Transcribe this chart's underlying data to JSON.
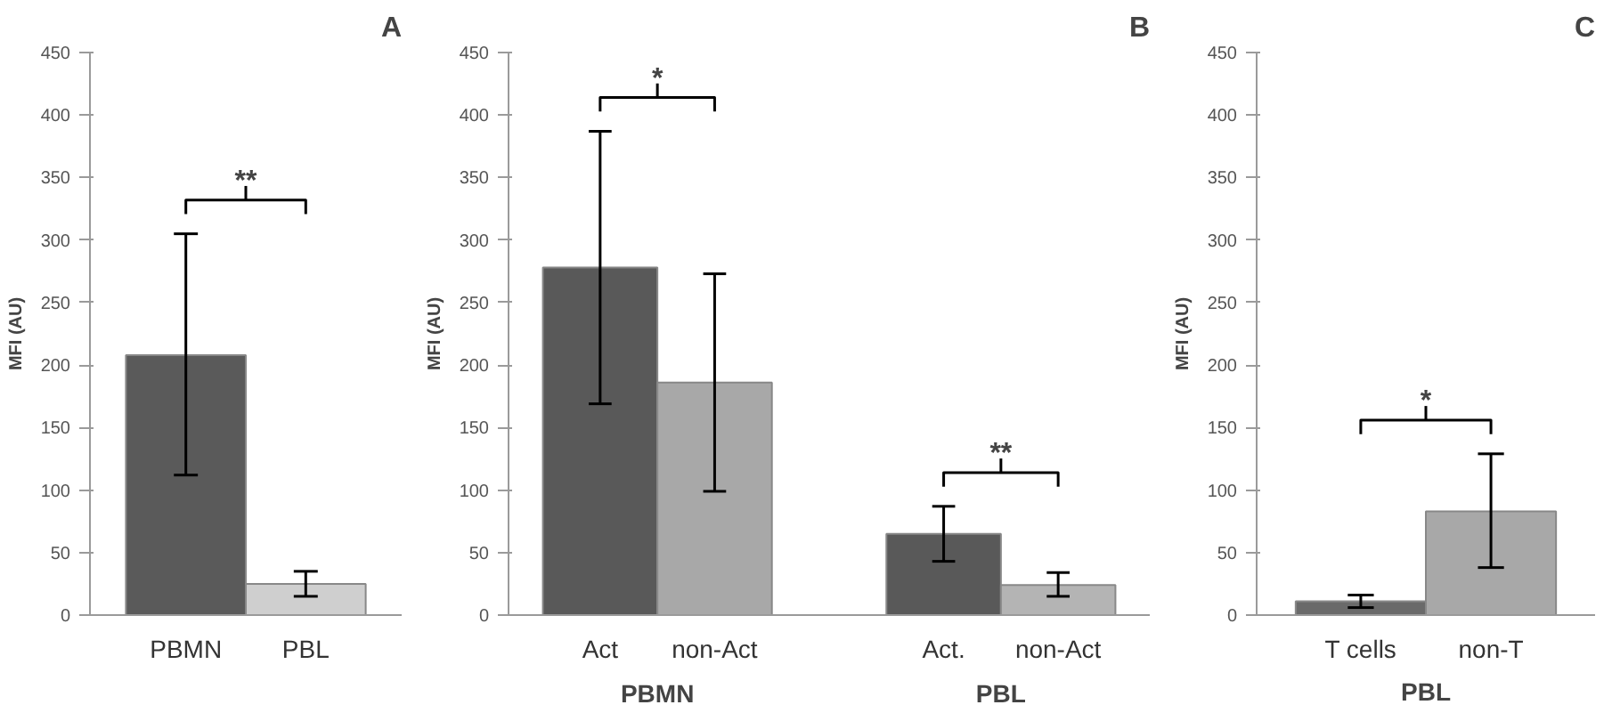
{
  "chart_data": [
    {
      "type": "bar",
      "title": "A",
      "ylabel": "MFI (AU)",
      "categories": [
        "PBMN",
        "PBL"
      ],
      "values": [
        208,
        25
      ],
      "colors": [
        "#5a5a5a",
        "#cfcfcf"
      ],
      "errors": [
        [
          112,
          305
        ],
        [
          15,
          35
        ]
      ],
      "ylim": [
        0,
        450
      ],
      "yticks": [
        0,
        50,
        100,
        150,
        200,
        250,
        300,
        350,
        400,
        450
      ],
      "grid": false,
      "annotations": [
        "**"
      ]
    },
    {
      "type": "bar",
      "title": "B",
      "ylabel": "MFI (AU)",
      "categories": [
        "Act",
        "non-Act",
        "Act.",
        "non-Act"
      ],
      "values": [
        278,
        186,
        65,
        24
      ],
      "colors": [
        "#595959",
        "#a8a8a8",
        "#595959",
        "#b4b4b4"
      ],
      "errors": [
        [
          169,
          387
        ],
        [
          99,
          273
        ],
        [
          43,
          87
        ],
        [
          15,
          34
        ]
      ],
      "ylim": [
        0,
        450
      ],
      "yticks": [
        0,
        50,
        100,
        150,
        200,
        250,
        300,
        350,
        400,
        450
      ],
      "grid": false,
      "annotations": [
        "*",
        "**",
        "PBMN",
        "PBL"
      ]
    },
    {
      "type": "bar",
      "title": "C",
      "ylabel": "MFI (AU)",
      "xlabel": "PBL",
      "categories": [
        "T cells",
        "non-T"
      ],
      "values": [
        11,
        83
      ],
      "colors": [
        "#6a6a6a",
        "#a8a8a8"
      ],
      "errors": [
        [
          6,
          16
        ],
        [
          38,
          129
        ]
      ],
      "ylim": [
        0,
        450
      ],
      "yticks": [
        0,
        50,
        100,
        150,
        200,
        250,
        300,
        350,
        400,
        450
      ],
      "grid": false,
      "annotations": [
        "*"
      ]
    }
  ]
}
